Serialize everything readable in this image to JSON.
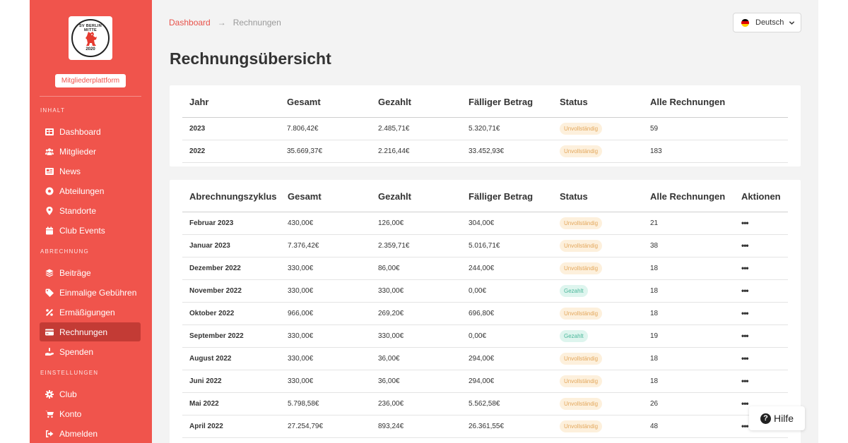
{
  "sidebar": {
    "logo": {
      "arc_text": "SV BERLIN MITTE",
      "year": "2020"
    },
    "platform_label": "Mitgliederplattform",
    "sections": [
      {
        "title": "INHALT",
        "items": [
          {
            "label": "Dashboard",
            "icon": "dashboard-icon"
          },
          {
            "label": "Mitglieder",
            "icon": "users-icon"
          },
          {
            "label": "News",
            "icon": "news-icon"
          },
          {
            "label": "Abteilungen",
            "icon": "soccer-ball-icon"
          },
          {
            "label": "Standorte",
            "icon": "map-pin-icon"
          },
          {
            "label": "Club Events",
            "icon": "calendar-icon"
          }
        ]
      },
      {
        "title": "ABRECHNUNG",
        "items": [
          {
            "label": "Beiträge",
            "icon": "layers-icon"
          },
          {
            "label": "Einmalige Gebühren",
            "icon": "tag-icon"
          },
          {
            "label": "Ermäßigungen",
            "icon": "percent-icon"
          },
          {
            "label": "Rechnungen",
            "icon": "credit-card-icon",
            "active": true
          },
          {
            "label": "Spenden",
            "icon": "donate-hand-icon"
          }
        ]
      },
      {
        "title": "EINSTELLUNGEN",
        "items": [
          {
            "label": "Club",
            "icon": "gear-icon"
          },
          {
            "label": "Konto",
            "icon": "cart-icon"
          },
          {
            "label": "Abmelden",
            "icon": "logout-icon"
          }
        ]
      }
    ]
  },
  "breadcrumb": {
    "parent": "Dashboard",
    "arrow": "→",
    "current": "Rechnungen"
  },
  "language": {
    "label": "Deutsch",
    "flag_colors": [
      "#000000",
      "#dd0000",
      "#ffce00"
    ]
  },
  "page_title": "Rechnungsübersicht",
  "year_table": {
    "headers": [
      "Jahr",
      "Gesamt",
      "Gezahlt",
      "Fälliger Betrag",
      "Status",
      "Alle Rechnungen"
    ],
    "rows": [
      {
        "year": "2023",
        "total": "7.806,42€",
        "paid": "2.485,71€",
        "due": "5.320,71€",
        "status": "Unvollständig",
        "status_type": "open",
        "count": "59"
      },
      {
        "year": "2022",
        "total": "35.669,37€",
        "paid": "2.216,44€",
        "due": "33.452,93€",
        "status": "Unvollständig",
        "status_type": "open",
        "count": "183"
      }
    ]
  },
  "cycle_table": {
    "headers": [
      "Abrechnungszyklus",
      "Gesamt",
      "Gezahlt",
      "Fälliger Betrag",
      "Status",
      "Alle Rechnungen",
      "Aktionen"
    ],
    "rows": [
      {
        "cycle": "Februar 2023",
        "total": "430,00€",
        "paid": "126,00€",
        "due": "304,00€",
        "status": "Unvollständig",
        "status_type": "open",
        "count": "21"
      },
      {
        "cycle": "Januar 2023",
        "total": "7.376,42€",
        "paid": "2.359,71€",
        "due": "5.016,71€",
        "status": "Unvollständig",
        "status_type": "open",
        "count": "38"
      },
      {
        "cycle": "Dezember 2022",
        "total": "330,00€",
        "paid": "86,00€",
        "due": "244,00€",
        "status": "Unvollständig",
        "status_type": "open",
        "count": "18"
      },
      {
        "cycle": "November 2022",
        "total": "330,00€",
        "paid": "330,00€",
        "due": "0,00€",
        "status": "Gezahlt",
        "status_type": "paid",
        "count": "18"
      },
      {
        "cycle": "Oktober 2022",
        "total": "966,00€",
        "paid": "269,20€",
        "due": "696,80€",
        "status": "Unvollständig",
        "status_type": "open",
        "count": "18"
      },
      {
        "cycle": "September 2022",
        "total": "330,00€",
        "paid": "330,00€",
        "due": "0,00€",
        "status": "Gezahlt",
        "status_type": "paid",
        "count": "19"
      },
      {
        "cycle": "August 2022",
        "total": "330,00€",
        "paid": "36,00€",
        "due": "294,00€",
        "status": "Unvollständig",
        "status_type": "open",
        "count": "18"
      },
      {
        "cycle": "Juni 2022",
        "total": "330,00€",
        "paid": "36,00€",
        "due": "294,00€",
        "status": "Unvollständig",
        "status_type": "open",
        "count": "18"
      },
      {
        "cycle": "Mai 2022",
        "total": "5.798,58€",
        "paid": "236,00€",
        "due": "5.562,58€",
        "status": "Unvollständig",
        "status_type": "open",
        "count": "26"
      },
      {
        "cycle": "April 2022",
        "total": "27.254,79€",
        "paid": "893,24€",
        "due": "26.361,55€",
        "status": "Unvollständig",
        "status_type": "open",
        "count": "48"
      }
    ],
    "action_label": "•••"
  },
  "help": {
    "label": "Hilfe",
    "icon": "question-circle-icon",
    "icon_glyph": "?"
  }
}
